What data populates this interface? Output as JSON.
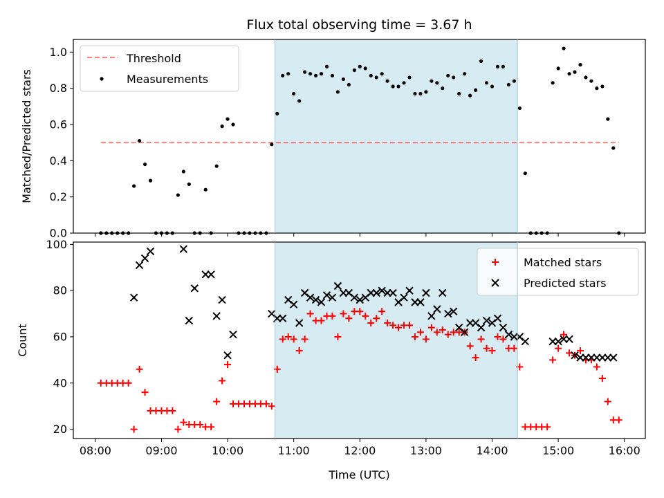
{
  "chart_data": [
    {
      "type": "scatter",
      "title": "Flux total observing time = 3.67 h",
      "ylabel": "Matched/Predicted stars",
      "xlabel": "",
      "xlim": [
        "07:40",
        "16:19"
      ],
      "ylim": [
        0,
        1.07
      ],
      "yticks": [
        0.0,
        0.2,
        0.4,
        0.6,
        0.8,
        1.0
      ],
      "ytick_labels": [
        "0.0",
        "0.2",
        "0.4",
        "0.6",
        "0.8",
        "1.0"
      ],
      "shaded_span": {
        "start": "10:43",
        "end": "14:23",
        "color": "#add8e6"
      },
      "legend_position": "top-left",
      "threshold": {
        "name": "Threshold",
        "value": 0.5,
        "x_start": "08:05",
        "x_end": "15:55",
        "color": "#ff0000",
        "style": "dashed"
      },
      "series": [
        {
          "name": "Measurements",
          "color": "#000000",
          "marker": "dot",
          "x": [
            "08:05",
            "08:10",
            "08:15",
            "08:20",
            "08:25",
            "08:30",
            "08:35",
            "08:40",
            "08:45",
            "08:50",
            "08:55",
            "09:00",
            "09:05",
            "09:10",
            "09:15",
            "09:20",
            "09:25",
            "09:30",
            "09:35",
            "09:40",
            "09:45",
            "09:50",
            "09:55",
            "10:00",
            "10:05",
            "10:10",
            "10:15",
            "10:20",
            "10:25",
            "10:30",
            "10:35",
            "10:40",
            "10:45",
            "10:50",
            "10:55",
            "11:00",
            "11:05",
            "11:10",
            "11:15",
            "11:20",
            "11:25",
            "11:30",
            "11:35",
            "11:40",
            "11:45",
            "11:50",
            "11:55",
            "12:00",
            "12:05",
            "12:10",
            "12:15",
            "12:20",
            "12:25",
            "12:30",
            "12:35",
            "12:40",
            "12:45",
            "12:50",
            "12:55",
            "13:00",
            "13:05",
            "13:10",
            "13:15",
            "13:20",
            "13:25",
            "13:30",
            "13:35",
            "13:40",
            "13:45",
            "13:50",
            "13:55",
            "14:00",
            "14:05",
            "14:10",
            "14:15",
            "14:20",
            "14:25",
            "14:30",
            "14:35",
            "14:40",
            "14:45",
            "14:50",
            "14:55",
            "15:00",
            "15:05",
            "15:10",
            "15:15",
            "15:20",
            "15:25",
            "15:30",
            "15:35",
            "15:40",
            "15:45",
            "15:50",
            "15:55"
          ],
          "y": [
            0,
            0,
            0,
            0,
            0,
            0,
            0.26,
            0.51,
            0.38,
            0.29,
            0,
            0,
            0,
            0,
            0.21,
            0.34,
            0.27,
            0,
            0,
            0.24,
            0,
            0.37,
            0.59,
            0.63,
            0.6,
            0,
            0,
            0,
            0,
            0,
            0,
            0.49,
            0.66,
            0.87,
            0.88,
            0.77,
            0.73,
            0.89,
            0.88,
            0.87,
            0.88,
            0.92,
            0.87,
            0.78,
            0.85,
            0.82,
            0.9,
            0.92,
            0.91,
            0.87,
            0.86,
            0.88,
            0.84,
            0.81,
            0.81,
            0.83,
            0.86,
            0.77,
            0.77,
            0.78,
            0.84,
            0.83,
            0.8,
            0.87,
            0.86,
            0.77,
            0.88,
            0.76,
            0.79,
            0.95,
            0.83,
            0.81,
            0.92,
            0.92,
            0.82,
            0.84,
            0.69,
            0.33,
            0,
            0,
            0,
            0,
            0.83,
            0.91,
            1.02,
            0.88,
            0.89,
            0.93,
            0.86,
            0.84,
            0.8,
            0.81,
            0.63,
            0.47,
            0
          ]
        }
      ]
    },
    {
      "type": "scatter",
      "title": "",
      "xlabel": "Time (UTC)",
      "ylabel": "Count",
      "xlim": [
        "07:40",
        "16:19"
      ],
      "ylim": [
        16,
        101
      ],
      "yticks": [
        20,
        40,
        60,
        80,
        100
      ],
      "ytick_labels": [
        "20",
        "40",
        "60",
        "80",
        "100"
      ],
      "xticks": [
        "08:00",
        "09:00",
        "10:00",
        "11:00",
        "12:00",
        "13:00",
        "14:00",
        "15:00",
        "16:00"
      ],
      "xtick_labels": [
        "08:00",
        "09:00",
        "10:00",
        "11:00",
        "12:00",
        "13:00",
        "14:00",
        "15:00",
        "16:00"
      ],
      "shaded_span": {
        "start": "10:43",
        "end": "14:23",
        "color": "#add8e6"
      },
      "legend_position": "top-right",
      "series": [
        {
          "name": "Matched stars",
          "color": "#ff0000",
          "marker": "plus",
          "x": [
            "08:05",
            "08:10",
            "08:15",
            "08:20",
            "08:25",
            "08:30",
            "08:35",
            "08:40",
            "08:45",
            "08:50",
            "08:55",
            "09:00",
            "09:05",
            "09:10",
            "09:15",
            "09:20",
            "09:25",
            "09:30",
            "09:35",
            "09:40",
            "09:45",
            "09:50",
            "09:55",
            "10:00",
            "10:05",
            "10:10",
            "10:15",
            "10:20",
            "10:25",
            "10:30",
            "10:35",
            "10:40",
            "10:45",
            "10:50",
            "10:55",
            "11:00",
            "11:05",
            "11:10",
            "11:15",
            "11:20",
            "11:25",
            "11:30",
            "11:35",
            "11:40",
            "11:45",
            "11:50",
            "11:55",
            "12:00",
            "12:05",
            "12:10",
            "12:15",
            "12:20",
            "12:25",
            "12:30",
            "12:35",
            "12:40",
            "12:45",
            "12:50",
            "12:55",
            "13:00",
            "13:05",
            "13:10",
            "13:15",
            "13:20",
            "13:25",
            "13:30",
            "13:35",
            "13:40",
            "13:45",
            "13:50",
            "13:55",
            "14:00",
            "14:05",
            "14:10",
            "14:15",
            "14:20",
            "14:25",
            "14:30",
            "14:35",
            "14:40",
            "14:45",
            "14:50",
            "14:55",
            "15:00",
            "15:05",
            "15:10",
            "15:15",
            "15:20",
            "15:25",
            "15:30",
            "15:35",
            "15:40",
            "15:45",
            "15:50",
            "15:55"
          ],
          "y": [
            40,
            40,
            40,
            40,
            40,
            40,
            20,
            46,
            36,
            28,
            28,
            28,
            28,
            28,
            20,
            23,
            22,
            22,
            22,
            21,
            21,
            32,
            41,
            48,
            31,
            31,
            31,
            31,
            31,
            31,
            31,
            30,
            46,
            59,
            60,
            59,
            54,
            59,
            70,
            67,
            67,
            69,
            69,
            60,
            70,
            68,
            71,
            71,
            69,
            66,
            68,
            71,
            66,
            65,
            64,
            65,
            65,
            60,
            62,
            59,
            64,
            62,
            63,
            61,
            62,
            62,
            62,
            56,
            51,
            59,
            55,
            54,
            60,
            59,
            55,
            55,
            47,
            21,
            21,
            21,
            21,
            21,
            50,
            55,
            61,
            53,
            52,
            54,
            50,
            50,
            47,
            42,
            32,
            24,
            24
          ]
        },
        {
          "name": "Predicted stars",
          "color": "#000000",
          "marker": "x",
          "x": [
            "08:35",
            "08:40",
            "08:45",
            "08:50",
            "09:20",
            "09:25",
            "09:30",
            "09:40",
            "09:45",
            "09:50",
            "09:55",
            "10:00",
            "10:05",
            "10:40",
            "10:45",
            "10:50",
            "10:55",
            "11:00",
            "11:05",
            "11:10",
            "11:15",
            "11:20",
            "11:25",
            "11:30",
            "11:35",
            "11:40",
            "11:45",
            "11:50",
            "11:55",
            "12:00",
            "12:05",
            "12:10",
            "12:15",
            "12:20",
            "12:25",
            "12:30",
            "12:35",
            "12:40",
            "12:45",
            "12:50",
            "12:55",
            "13:00",
            "13:05",
            "13:10",
            "13:15",
            "13:20",
            "13:25",
            "13:30",
            "13:35",
            "13:40",
            "13:45",
            "13:50",
            "13:55",
            "14:00",
            "14:05",
            "14:10",
            "14:15",
            "14:20",
            "14:25",
            "14:30",
            "14:55",
            "15:00",
            "15:05",
            "15:10",
            "15:15",
            "15:20",
            "15:25",
            "15:30",
            "15:35",
            "15:40",
            "15:45",
            "15:50"
          ],
          "y": [
            77,
            91,
            94,
            97,
            98,
            67,
            81,
            87,
            87,
            69,
            76,
            52,
            61,
            70,
            68,
            68,
            76,
            74,
            66,
            79,
            77,
            76,
            75,
            78,
            77,
            82,
            79,
            79,
            77,
            76,
            77,
            79,
            79,
            80,
            79,
            79,
            75,
            77,
            80,
            75,
            75,
            79,
            69,
            72,
            79,
            70,
            71,
            64,
            62,
            66,
            66,
            64,
            67,
            66,
            68,
            64,
            61,
            60,
            60,
            58,
            58,
            58,
            59,
            59,
            52,
            51,
            51,
            51,
            51,
            51,
            51,
            51
          ]
        }
      ]
    }
  ]
}
